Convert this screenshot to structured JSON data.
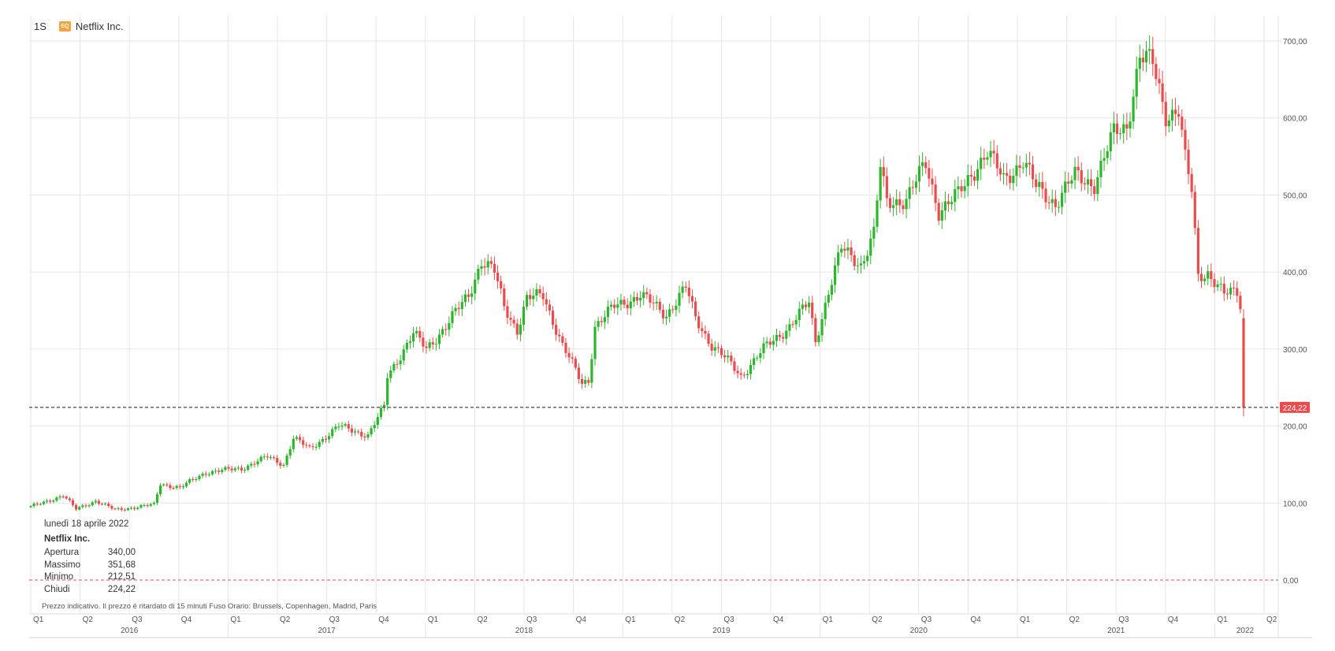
{
  "header": {
    "timeframe": "1S",
    "badge": "EQ",
    "instrument": "Netflix Inc."
  },
  "info": {
    "date": "lunedì 18 aprile 2022",
    "name": "Netflix Inc.",
    "rows": [
      {
        "label": "Apertura",
        "value": "340,00"
      },
      {
        "label": "Massimo",
        "value": "351,68"
      },
      {
        "label": "Minimo",
        "value": "212,51"
      },
      {
        "label": "Chiudi",
        "value": "224,22"
      }
    ]
  },
  "disclaimer": "Prezzo indicativo. Il prezzo è ritardato di 15 minuti    Fuso Orario: Brussels, Copenhagen, Madrid, Paris",
  "colors": {
    "up": "#2db52d",
    "down": "#e84c4c",
    "grid": "#e6e6e6",
    "last_price": "#e84c4c"
  },
  "chart_data": {
    "type": "candlestick",
    "interval": "weekly",
    "ylim": [
      -55,
      720
    ],
    "yticks": [
      {
        "value": 0,
        "label": "0,00"
      },
      {
        "value": 100,
        "label": "100,00"
      },
      {
        "value": 200,
        "label": "200,00"
      },
      {
        "value": 300,
        "label": "300,00"
      },
      {
        "value": 400,
        "label": "400,00"
      },
      {
        "value": 500,
        "label": "500,00"
      },
      {
        "value": 600,
        "label": "600,00"
      },
      {
        "value": 700,
        "label": "700,00"
      }
    ],
    "quarters": [
      "Q1",
      "Q2",
      "Q3",
      "Q4",
      "Q1",
      "Q2",
      "Q3",
      "Q4",
      "Q1",
      "Q2",
      "Q3",
      "Q4",
      "Q1",
      "Q2",
      "Q3",
      "Q4",
      "Q1",
      "Q2",
      "Q3",
      "Q4",
      "Q1",
      "Q2",
      "Q3",
      "Q4",
      "Q1",
      "Q2"
    ],
    "years": [
      "2016",
      "2017",
      "2018",
      "2019",
      "2020",
      "2021",
      "2022"
    ],
    "last_price": {
      "value": 224.22,
      "label": "224,22"
    },
    "zero_line": 0,
    "anchors": [
      {
        "week": 0,
        "close": 95
      },
      {
        "week": 10,
        "close": 110
      },
      {
        "week": 14,
        "close": 92
      },
      {
        "week": 20,
        "close": 103
      },
      {
        "week": 26,
        "close": 91
      },
      {
        "week": 38,
        "close": 98
      },
      {
        "week": 40,
        "close": 125
      },
      {
        "week": 46,
        "close": 120
      },
      {
        "week": 54,
        "close": 140
      },
      {
        "week": 65,
        "close": 145
      },
      {
        "week": 73,
        "close": 160
      },
      {
        "week": 78,
        "close": 150
      },
      {
        "week": 81,
        "close": 185
      },
      {
        "week": 86,
        "close": 170
      },
      {
        "week": 95,
        "close": 200
      },
      {
        "week": 104,
        "close": 188
      },
      {
        "week": 109,
        "close": 225
      },
      {
        "week": 110,
        "close": 265
      },
      {
        "week": 118,
        "close": 320
      },
      {
        "week": 122,
        "close": 300
      },
      {
        "week": 128,
        "close": 330
      },
      {
        "week": 135,
        "close": 370
      },
      {
        "week": 139,
        "close": 415
      },
      {
        "week": 143,
        "close": 400
      },
      {
        "week": 146,
        "close": 355
      },
      {
        "week": 150,
        "close": 325
      },
      {
        "week": 153,
        "close": 365
      },
      {
        "week": 158,
        "close": 370
      },
      {
        "week": 164,
        "close": 305
      },
      {
        "week": 170,
        "close": 255
      },
      {
        "week": 172,
        "close": 260
      },
      {
        "week": 174,
        "close": 330
      },
      {
        "week": 180,
        "close": 355
      },
      {
        "week": 188,
        "close": 370
      },
      {
        "week": 196,
        "close": 345
      },
      {
        "week": 202,
        "close": 380
      },
      {
        "week": 205,
        "close": 340
      },
      {
        "week": 210,
        "close": 305
      },
      {
        "week": 216,
        "close": 280
      },
      {
        "week": 219,
        "close": 265
      },
      {
        "week": 226,
        "close": 300
      },
      {
        "week": 234,
        "close": 330
      },
      {
        "week": 240,
        "close": 360
      },
      {
        "week": 242,
        "close": 310
      },
      {
        "week": 246,
        "close": 375
      },
      {
        "week": 250,
        "close": 430
      },
      {
        "week": 256,
        "close": 410
      },
      {
        "week": 260,
        "close": 450
      },
      {
        "week": 262,
        "close": 535
      },
      {
        "week": 264,
        "close": 490
      },
      {
        "week": 270,
        "close": 495
      },
      {
        "week": 276,
        "close": 540
      },
      {
        "week": 280,
        "close": 480
      },
      {
        "week": 286,
        "close": 500
      },
      {
        "week": 292,
        "close": 540
      },
      {
        "week": 295,
        "close": 555
      },
      {
        "week": 300,
        "close": 520
      },
      {
        "week": 306,
        "close": 545
      },
      {
        "week": 310,
        "close": 510
      },
      {
        "week": 316,
        "close": 490
      },
      {
        "week": 322,
        "close": 525
      },
      {
        "week": 328,
        "close": 515
      },
      {
        "week": 334,
        "close": 580
      },
      {
        "week": 338,
        "close": 590
      },
      {
        "week": 342,
        "close": 680
      },
      {
        "week": 346,
        "close": 670
      },
      {
        "week": 350,
        "close": 605
      },
      {
        "week": 354,
        "close": 610
      },
      {
        "week": 356,
        "close": 545
      },
      {
        "week": 358,
        "close": 505
      },
      {
        "week": 360,
        "close": 395
      },
      {
        "week": 363,
        "close": 400
      },
      {
        "week": 368,
        "close": 370
      },
      {
        "week": 372,
        "close": 375
      },
      {
        "week": 374,
        "close": 340
      }
    ],
    "final_candle": {
      "open": 340.0,
      "high": 351.68,
      "low": 212.51,
      "close": 224.22
    }
  }
}
